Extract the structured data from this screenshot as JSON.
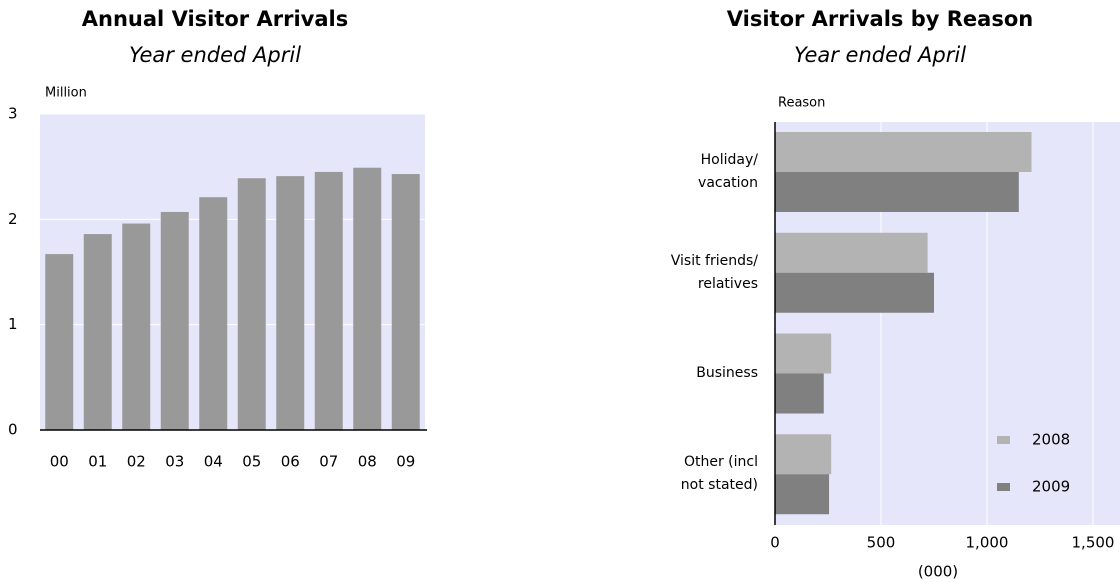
{
  "chart_data": [
    {
      "type": "bar",
      "title": "Annual Visitor Arrivals",
      "subtitle": "Year ended April",
      "y_label": "Million",
      "categories": [
        "00",
        "01",
        "02",
        "03",
        "04",
        "05",
        "06",
        "07",
        "08",
        "09"
      ],
      "values": [
        1.67,
        1.86,
        1.96,
        2.07,
        2.21,
        2.39,
        2.41,
        2.45,
        2.49,
        2.43
      ],
      "color": "#999999",
      "background": "#e6e6fa",
      "ylim": [
        0,
        3
      ],
      "yticks": [
        0,
        1,
        2,
        3
      ],
      "grid": true
    },
    {
      "type": "bar",
      "horizontal": true,
      "title": "Visitor Arrivals by Reason",
      "subtitle": "Year ended April",
      "y_label": "Reason",
      "x_label": "(000)",
      "categories": [
        "Holiday/\nvacation",
        "Visit friends/\nrelatives",
        "Business",
        "Other (incl\nnot stated)"
      ],
      "series": [
        {
          "name": "2008",
          "color": "#b3b3b3",
          "values": [
            1210,
            720,
            265,
            265
          ]
        },
        {
          "name": "2009",
          "color": "#808080",
          "values": [
            1150,
            750,
            230,
            255
          ]
        }
      ],
      "background": "#e6e6fa",
      "legend": "lower-right",
      "xlim": [
        0,
        1500
      ],
      "xticks": [
        0,
        500,
        {
          "value": 1000,
          "label": "1,000"
        },
        {
          "value": 1500,
          "label": "1,500"
        }
      ],
      "grid": true
    }
  ]
}
